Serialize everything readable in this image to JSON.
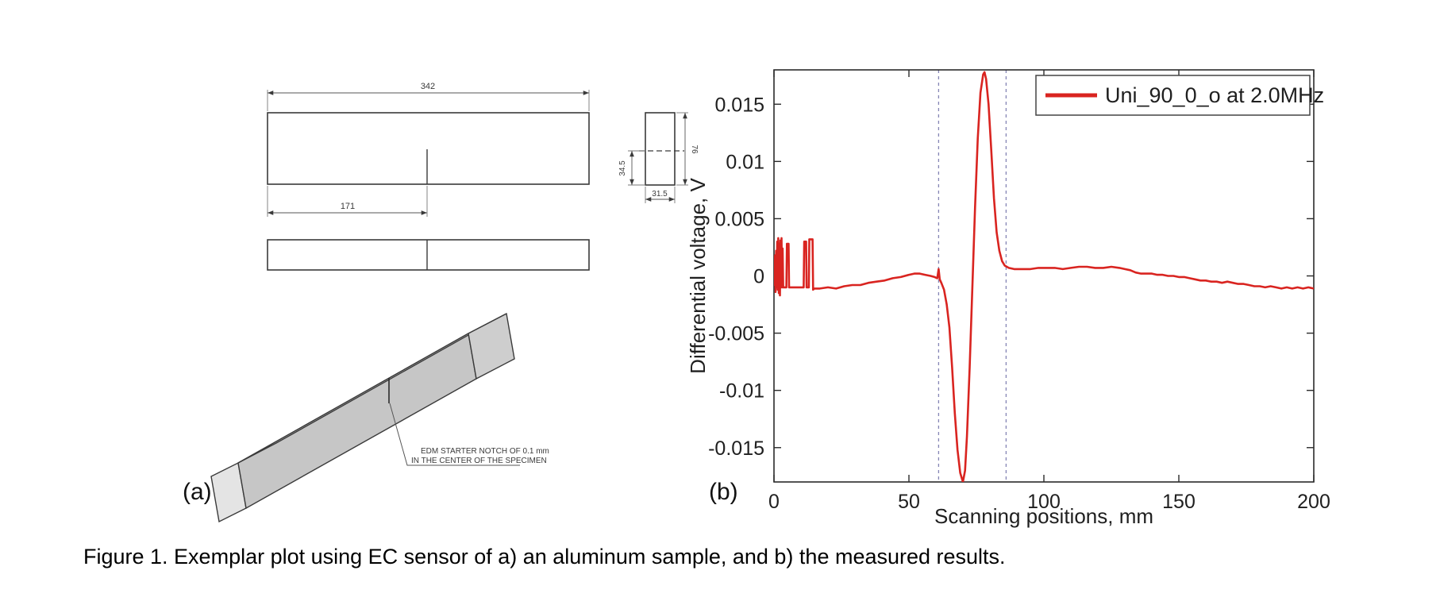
{
  "figure": {
    "panel_a_label": "(a)",
    "panel_b_label": "(b)",
    "caption": "Figure 1. Exemplar plot using EC sensor of a) an aluminum sample, and b) the measured results."
  },
  "drawing": {
    "dim_length": "342",
    "dim_notch_position": "171",
    "dim_half_height": "34.5",
    "dim_width": "31.5",
    "dim_height": "76",
    "notch_note_line1": "EDM STARTER NOTCH OF 0.1 mm",
    "notch_note_line2": "IN THE CENTER OF THE SPECIMEN"
  },
  "chart_data": {
    "type": "line",
    "title": "",
    "xlabel": "Scanning positions, mm",
    "ylabel": "Differential voltage, V",
    "xlim": [
      0,
      200
    ],
    "ylim": [
      -0.018,
      0.018
    ],
    "xticks": [
      0,
      50,
      100,
      150,
      200
    ],
    "yticks": [
      -0.015,
      -0.01,
      -0.005,
      0,
      0.005,
      0.01,
      0.015
    ],
    "grid": false,
    "frame_color": "#2b2b2b",
    "legend": {
      "position": "top-right",
      "entries": [
        {
          "label": "Uni_90_0_o at 2.0MHz",
          "color": "#d92420"
        }
      ]
    },
    "reference_lines": {
      "vertical_dashed_x": [
        61,
        86
      ],
      "color": "#8585b5"
    },
    "series": [
      {
        "name": "Uni_90_0_o at 2.0MHz",
        "color": "#d92420",
        "points": [
          [
            0,
            0.0012
          ],
          [
            0.2,
            -0.0008
          ],
          [
            0.4,
            0.0018
          ],
          [
            0.6,
            -0.0014
          ],
          [
            0.8,
            0.0022
          ],
          [
            1,
            -0.001
          ],
          [
            1.2,
            0.003
          ],
          [
            1.4,
            -0.0012
          ],
          [
            1.6,
            0.0033
          ],
          [
            1.8,
            -0.0015
          ],
          [
            2,
            0.0028
          ],
          [
            2.2,
            -0.0017
          ],
          [
            2.4,
            0.0031
          ],
          [
            2.6,
            -0.001
          ],
          [
            2.8,
            0.0033
          ],
          [
            3,
            -0.001
          ],
          [
            3.2,
            0.0024
          ],
          [
            3.4,
            -0.001
          ],
          [
            4.6,
            -0.001
          ],
          [
            4.8,
            0.0028
          ],
          [
            5.4,
            0.0028
          ],
          [
            5.6,
            -0.001
          ],
          [
            7,
            -0.001
          ],
          [
            11,
            -0.001
          ],
          [
            11.2,
            0.003
          ],
          [
            11.9,
            0.003
          ],
          [
            12.1,
            -0.001
          ],
          [
            12.9,
            -0.001
          ],
          [
            13.1,
            0.0032
          ],
          [
            14.3,
            0.0032
          ],
          [
            14.5,
            -0.0012
          ],
          [
            15,
            -0.0011
          ],
          [
            17,
            -0.0011
          ],
          [
            20,
            -0.001
          ],
          [
            23,
            -0.0011
          ],
          [
            26,
            -0.0009
          ],
          [
            29,
            -0.0008
          ],
          [
            32,
            -0.0008
          ],
          [
            35,
            -0.0006
          ],
          [
            38,
            -0.0005
          ],
          [
            41,
            -0.0004
          ],
          [
            44,
            -0.0002
          ],
          [
            47,
            -0.0001
          ],
          [
            50,
            0.0001
          ],
          [
            52,
            0.0002
          ],
          [
            54,
            0.0002
          ],
          [
            56,
            0.0001
          ],
          [
            58,
            0
          ],
          [
            59.5,
            -0.0001
          ],
          [
            60.5,
            -0.0002
          ],
          [
            61,
            0.0006
          ],
          [
            61.4,
            -0.0003
          ],
          [
            62,
            -0.0006
          ],
          [
            63,
            -0.0012
          ],
          [
            64,
            -0.0025
          ],
          [
            65,
            -0.0045
          ],
          [
            66,
            -0.008
          ],
          [
            67,
            -0.012
          ],
          [
            68,
            -0.0152
          ],
          [
            69,
            -0.0172
          ],
          [
            70,
            -0.018
          ],
          [
            70.8,
            -0.017
          ],
          [
            71.5,
            -0.014
          ],
          [
            72.5,
            -0.008
          ],
          [
            73.5,
            -0.001
          ],
          [
            74.5,
            0.006
          ],
          [
            75.5,
            0.012
          ],
          [
            76.5,
            0.016
          ],
          [
            77.5,
            0.0176
          ],
          [
            78,
            0.0178
          ],
          [
            78.6,
            0.0172
          ],
          [
            79.5,
            0.015
          ],
          [
            80.5,
            0.011
          ],
          [
            81.5,
            0.0068
          ],
          [
            82.5,
            0.0038
          ],
          [
            83.5,
            0.0022
          ],
          [
            84.5,
            0.0013
          ],
          [
            85.5,
            0.0009
          ],
          [
            87,
            0.0007
          ],
          [
            89,
            0.0006
          ],
          [
            92,
            0.0006
          ],
          [
            95,
            0.0006
          ],
          [
            98,
            0.0007
          ],
          [
            101,
            0.0007
          ],
          [
            104,
            0.0007
          ],
          [
            107,
            0.0006
          ],
          [
            110,
            0.0007
          ],
          [
            113,
            0.0008
          ],
          [
            116,
            0.0008
          ],
          [
            119,
            0.0007
          ],
          [
            122,
            0.0007
          ],
          [
            125,
            0.0008
          ],
          [
            128,
            0.0007
          ],
          [
            130,
            0.0006
          ],
          [
            132,
            0.0005
          ],
          [
            134,
            0.0003
          ],
          [
            136,
            0.0002
          ],
          [
            138,
            0.0002
          ],
          [
            140,
            0.0002
          ],
          [
            142,
            0.0001
          ],
          [
            144,
            0.0001
          ],
          [
            146,
            0
          ],
          [
            148,
            0
          ],
          [
            150,
            -0.0001
          ],
          [
            152,
            -0.0001
          ],
          [
            154,
            -0.0002
          ],
          [
            156,
            -0.0003
          ],
          [
            158,
            -0.0004
          ],
          [
            160,
            -0.0004
          ],
          [
            162,
            -0.0005
          ],
          [
            164,
            -0.0005
          ],
          [
            166,
            -0.0006
          ],
          [
            168,
            -0.0005
          ],
          [
            170,
            -0.0006
          ],
          [
            172,
            -0.0007
          ],
          [
            174,
            -0.0007
          ],
          [
            176,
            -0.0008
          ],
          [
            178,
            -0.0009
          ],
          [
            180,
            -0.0009
          ],
          [
            182,
            -0.001
          ],
          [
            184,
            -0.0009
          ],
          [
            186,
            -0.001
          ],
          [
            188,
            -0.0011
          ],
          [
            190,
            -0.001
          ],
          [
            192,
            -0.0011
          ],
          [
            194,
            -0.001
          ],
          [
            196,
            -0.0011
          ],
          [
            198,
            -0.001
          ],
          [
            200,
            -0.0011
          ]
        ]
      }
    ]
  }
}
